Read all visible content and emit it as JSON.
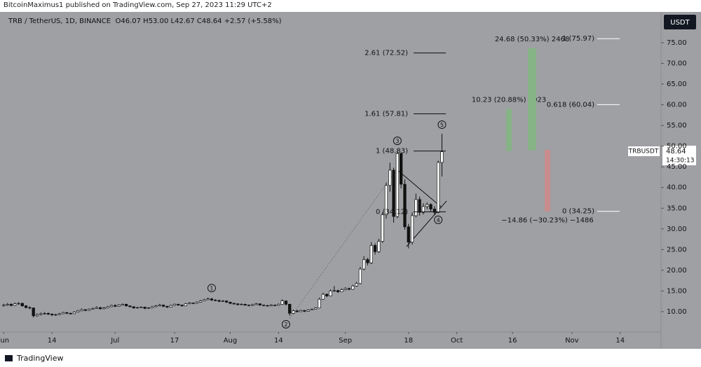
{
  "header": {
    "publisher": "BitcoinMaximus1 published on TradingView.com, Sep 27, 2023 11:29 UTC+2",
    "symbol": "TRB / TetherUS, 1D, BINANCE",
    "o_label": "O",
    "open": "46.07",
    "h_label": "H",
    "high": "53.00",
    "l_label": "L",
    "low": "42.67",
    "c_label": "C",
    "close": "48.64",
    "change": "+2.57 (+5.58%)",
    "currency": "USDT",
    "ticker_tag": "TRBUSDT",
    "price_tag": "48.64",
    "countdown": "14:30:13"
  },
  "footer": {
    "brand": "TradingView"
  },
  "chart_data": {
    "type": "candlestick",
    "background": "#9fa0a4",
    "xlim": [
      "2023-05-31",
      "2023-11-25"
    ],
    "xticks": [
      {
        "value": "2023-06-01",
        "label": "Jun"
      },
      {
        "value": "2023-06-14",
        "label": "14"
      },
      {
        "value": "2023-07-01",
        "label": "Jul"
      },
      {
        "value": "2023-07-17",
        "label": "17"
      },
      {
        "value": "2023-08-01",
        "label": "Aug"
      },
      {
        "value": "2023-08-14",
        "label": "14"
      },
      {
        "value": "2023-09-01",
        "label": "Sep"
      },
      {
        "value": "2023-09-18",
        "label": "18"
      },
      {
        "value": "2023-10-01",
        "label": "Oct"
      },
      {
        "value": "2023-10-16",
        "label": "16"
      },
      {
        "value": "2023-11-01",
        "label": "Nov"
      },
      {
        "value": "2023-11-14",
        "label": "14"
      }
    ],
    "ylim": [
      5.09,
      82.44
    ],
    "yticks": [
      {
        "value": 10,
        "label": "10.00"
      },
      {
        "value": 15,
        "label": "15.00"
      },
      {
        "value": 20,
        "label": "20.00"
      },
      {
        "value": 25,
        "label": "25.00"
      },
      {
        "value": 30,
        "label": "30.00"
      },
      {
        "value": 35,
        "label": "35.00"
      },
      {
        "value": 40,
        "label": "40.00"
      },
      {
        "value": 45,
        "label": "45.00"
      },
      {
        "value": 50,
        "label": "50.00"
      },
      {
        "value": 55,
        "label": "55.00"
      },
      {
        "value": 60,
        "label": "60.00"
      },
      {
        "value": 65,
        "label": "65.00"
      },
      {
        "value": 70,
        "label": "70.00"
      },
      {
        "value": 75,
        "label": "75.00"
      }
    ],
    "x": [
      "2023-06-01",
      "2023-06-02",
      "2023-06-03",
      "2023-06-04",
      "2023-06-05",
      "2023-06-06",
      "2023-06-07",
      "2023-06-08",
      "2023-06-09",
      "2023-06-10",
      "2023-06-11",
      "2023-06-12",
      "2023-06-13",
      "2023-06-14",
      "2023-06-15",
      "2023-06-16",
      "2023-06-17",
      "2023-06-18",
      "2023-06-19",
      "2023-06-20",
      "2023-06-21",
      "2023-06-22",
      "2023-06-23",
      "2023-06-24",
      "2023-06-25",
      "2023-06-26",
      "2023-06-27",
      "2023-06-28",
      "2023-06-29",
      "2023-06-30",
      "2023-07-01",
      "2023-07-02",
      "2023-07-03",
      "2023-07-04",
      "2023-07-05",
      "2023-07-06",
      "2023-07-07",
      "2023-07-08",
      "2023-07-09",
      "2023-07-10",
      "2023-07-11",
      "2023-07-12",
      "2023-07-13",
      "2023-07-14",
      "2023-07-15",
      "2023-07-16",
      "2023-07-17",
      "2023-07-18",
      "2023-07-19",
      "2023-07-20",
      "2023-07-21",
      "2023-07-22",
      "2023-07-23",
      "2023-07-24",
      "2023-07-25",
      "2023-07-26",
      "2023-07-27",
      "2023-07-28",
      "2023-07-29",
      "2023-07-30",
      "2023-07-31",
      "2023-08-01",
      "2023-08-02",
      "2023-08-03",
      "2023-08-04",
      "2023-08-05",
      "2023-08-06",
      "2023-08-07",
      "2023-08-08",
      "2023-08-09",
      "2023-08-10",
      "2023-08-11",
      "2023-08-12",
      "2023-08-13",
      "2023-08-14",
      "2023-08-15",
      "2023-08-16",
      "2023-08-17",
      "2023-08-18",
      "2023-08-19",
      "2023-08-20",
      "2023-08-21",
      "2023-08-22",
      "2023-08-23",
      "2023-08-24",
      "2023-08-25",
      "2023-08-26",
      "2023-08-27",
      "2023-08-28",
      "2023-08-29",
      "2023-08-30",
      "2023-08-31",
      "2023-09-01",
      "2023-09-02",
      "2023-09-03",
      "2023-09-04",
      "2023-09-05",
      "2023-09-06",
      "2023-09-07",
      "2023-09-08",
      "2023-09-09",
      "2023-09-10",
      "2023-09-11",
      "2023-09-12",
      "2023-09-13",
      "2023-09-14",
      "2023-09-15",
      "2023-09-16",
      "2023-09-17",
      "2023-09-18",
      "2023-09-19",
      "2023-09-20",
      "2023-09-21",
      "2023-09-22",
      "2023-09-23",
      "2023-09-24",
      "2023-09-25",
      "2023-09-26",
      "2023-09-27"
    ],
    "ohlc": [
      [
        11.4,
        11.9,
        11.2,
        11.6
      ],
      [
        11.6,
        12.1,
        11.4,
        11.8
      ],
      [
        11.8,
        12.0,
        11.3,
        11.5
      ],
      [
        11.5,
        12.2,
        11.4,
        11.9
      ],
      [
        11.9,
        12.3,
        11.7,
        12.0
      ],
      [
        12.0,
        12.2,
        11.2,
        11.4
      ],
      [
        11.4,
        11.6,
        10.8,
        11.0
      ],
      [
        11.0,
        11.3,
        10.6,
        10.9
      ],
      [
        10.9,
        11.0,
        8.6,
        9.0
      ],
      [
        9.0,
        9.6,
        8.8,
        9.3
      ],
      [
        9.3,
        9.8,
        9.1,
        9.5
      ],
      [
        9.5,
        9.9,
        9.3,
        9.6
      ],
      [
        9.6,
        9.8,
        9.2,
        9.4
      ],
      [
        9.4,
        9.6,
        9.0,
        9.2
      ],
      [
        9.2,
        9.5,
        9.0,
        9.3
      ],
      [
        9.3,
        9.7,
        9.2,
        9.5
      ],
      [
        9.5,
        10.0,
        9.4,
        9.8
      ],
      [
        9.8,
        9.9,
        9.4,
        9.6
      ],
      [
        9.6,
        9.8,
        9.3,
        9.5
      ],
      [
        9.5,
        10.1,
        9.4,
        9.9
      ],
      [
        9.9,
        10.4,
        9.8,
        10.2
      ],
      [
        10.2,
        10.8,
        10.1,
        10.5
      ],
      [
        10.5,
        10.6,
        10.1,
        10.3
      ],
      [
        10.3,
        10.8,
        10.2,
        10.6
      ],
      [
        10.6,
        11.0,
        10.5,
        10.8
      ],
      [
        10.8,
        11.3,
        10.7,
        11.0
      ],
      [
        11.0,
        11.1,
        10.5,
        10.7
      ],
      [
        10.7,
        11.1,
        10.6,
        10.9
      ],
      [
        10.9,
        11.4,
        10.8,
        11.2
      ],
      [
        11.2,
        11.7,
        11.1,
        11.5
      ],
      [
        11.5,
        11.8,
        11.1,
        11.3
      ],
      [
        11.3,
        11.8,
        11.2,
        11.6
      ],
      [
        11.6,
        12.0,
        11.5,
        11.8
      ],
      [
        11.8,
        11.9,
        11.2,
        11.4
      ],
      [
        11.4,
        11.5,
        11.0,
        11.2
      ],
      [
        11.2,
        11.3,
        10.7,
        10.9
      ],
      [
        10.9,
        11.2,
        10.8,
        11.0
      ],
      [
        11.0,
        11.3,
        10.9,
        11.1
      ],
      [
        11.1,
        11.2,
        10.6,
        10.8
      ],
      [
        10.8,
        11.1,
        10.7,
        10.9
      ],
      [
        10.9,
        11.4,
        10.8,
        11.2
      ],
      [
        11.2,
        11.6,
        11.1,
        11.4
      ],
      [
        11.4,
        11.9,
        11.3,
        11.6
      ],
      [
        11.6,
        11.7,
        11.1,
        11.3
      ],
      [
        11.3,
        11.4,
        10.9,
        11.1
      ],
      [
        11.1,
        11.7,
        11.0,
        11.5
      ],
      [
        11.5,
        12.0,
        11.4,
        11.8
      ],
      [
        11.8,
        11.9,
        11.4,
        11.6
      ],
      [
        11.6,
        11.7,
        11.2,
        11.4
      ],
      [
        11.4,
        12.1,
        11.3,
        11.9
      ],
      [
        11.9,
        12.3,
        11.8,
        12.1
      ],
      [
        12.1,
        12.2,
        11.8,
        12.0
      ],
      [
        12.0,
        12.5,
        11.9,
        12.3
      ],
      [
        12.3,
        12.8,
        12.2,
        12.6
      ],
      [
        12.6,
        13.1,
        12.5,
        12.9
      ],
      [
        12.9,
        13.4,
        12.8,
        13.1
      ],
      [
        13.1,
        13.3,
        12.6,
        12.8
      ],
      [
        12.8,
        13.0,
        12.5,
        12.7
      ],
      [
        12.7,
        12.9,
        12.3,
        12.5
      ],
      [
        12.5,
        12.8,
        12.4,
        12.6
      ],
      [
        12.6,
        12.7,
        12.1,
        12.3
      ],
      [
        12.3,
        12.4,
        11.8,
        12.0
      ],
      [
        12.0,
        12.2,
        11.7,
        11.9
      ],
      [
        11.9,
        12.0,
        11.5,
        11.7
      ],
      [
        11.7,
        12.0,
        11.6,
        11.8
      ],
      [
        11.8,
        11.9,
        11.4,
        11.6
      ],
      [
        11.6,
        11.7,
        11.3,
        11.5
      ],
      [
        11.5,
        11.9,
        11.4,
        11.7
      ],
      [
        11.7,
        12.1,
        11.6,
        11.9
      ],
      [
        11.9,
        12.0,
        11.4,
        11.6
      ],
      [
        11.6,
        11.7,
        11.3,
        11.5
      ],
      [
        11.5,
        11.6,
        11.2,
        11.4
      ],
      [
        11.4,
        11.8,
        11.3,
        11.6
      ],
      [
        11.6,
        11.7,
        11.3,
        11.5
      ],
      [
        11.5,
        12.0,
        11.4,
        11.8
      ],
      [
        11.8,
        13.0,
        11.7,
        12.6
      ],
      [
        12.6,
        12.7,
        11.5,
        11.8
      ],
      [
        11.8,
        11.9,
        9.0,
        9.6
      ],
      [
        9.6,
        10.5,
        9.4,
        10.2
      ],
      [
        10.2,
        10.4,
        9.8,
        10.0
      ],
      [
        10.0,
        10.5,
        9.9,
        10.3
      ],
      [
        10.3,
        10.4,
        9.9,
        10.1
      ],
      [
        10.1,
        10.6,
        10.0,
        10.4
      ],
      [
        10.4,
        10.8,
        10.3,
        10.6
      ],
      [
        10.6,
        11.1,
        10.5,
        10.9
      ],
      [
        10.9,
        13.4,
        10.8,
        13.0
      ],
      [
        13.0,
        14.6,
        12.9,
        14.2
      ],
      [
        14.2,
        14.4,
        13.5,
        13.8
      ],
      [
        13.8,
        15.4,
        13.7,
        15.0
      ],
      [
        15.0,
        16.2,
        14.8,
        15.1
      ],
      [
        15.1,
        15.3,
        14.5,
        14.8
      ],
      [
        14.8,
        15.6,
        14.7,
        15.3
      ],
      [
        15.3,
        15.9,
        15.1,
        15.6
      ],
      [
        15.6,
        15.8,
        15.2,
        15.4
      ],
      [
        15.4,
        16.5,
        15.3,
        16.2
      ],
      [
        16.2,
        17.2,
        16.0,
        16.8
      ],
      [
        16.8,
        20.8,
        16.6,
        20.3
      ],
      [
        20.3,
        23.4,
        20.0,
        22.6
      ],
      [
        22.6,
        23.0,
        21.2,
        21.8
      ],
      [
        21.8,
        26.8,
        21.5,
        26.0
      ],
      [
        26.0,
        26.5,
        23.8,
        24.5
      ],
      [
        24.5,
        27.6,
        24.2,
        27.0
      ],
      [
        27.0,
        34.0,
        26.6,
        33.4
      ],
      [
        33.4,
        41.2,
        32.5,
        40.5
      ],
      [
        40.5,
        46.0,
        39.0,
        44.2
      ],
      [
        44.2,
        44.8,
        31.5,
        33.0
      ],
      [
        33.0,
        48.83,
        32.6,
        48.2
      ],
      [
        48.2,
        48.5,
        39.8,
        40.8
      ],
      [
        40.8,
        42.0,
        29.8,
        30.5
      ],
      [
        30.5,
        31.2,
        25.3,
        26.8
      ],
      [
        26.8,
        34.0,
        26.2,
        33.2
      ],
      [
        33.2,
        38.5,
        32.8,
        37.1
      ],
      [
        37.1,
        37.8,
        33.2,
        34.0
      ],
      [
        34.0,
        36.2,
        33.5,
        35.4
      ],
      [
        35.4,
        36.4,
        34.8,
        35.9
      ],
      [
        35.9,
        36.2,
        34.2,
        34.8
      ],
      [
        34.8,
        35.5,
        33.4,
        34.0
      ],
      [
        34.0,
        46.5,
        33.8,
        46.07
      ],
      [
        46.07,
        53.0,
        42.67,
        48.64
      ]
    ],
    "fib_left": [
      {
        "label": "2.61 (72.52)",
        "value": 72.52
      },
      {
        "label": "1.61 (57.81)",
        "value": 57.81
      },
      {
        "label": "1 (48.83)",
        "value": 48.83
      },
      {
        "label": "0 (34.12)",
        "value": 34.12
      }
    ],
    "fib_right": [
      {
        "label": "1 (75.97)",
        "value": 75.97
      },
      {
        "label": "0.618 (60.04)",
        "value": 60.04
      },
      {
        "label": "0 (34.25)",
        "value": 34.25
      }
    ],
    "measures": [
      {
        "label": "10.23 (20.88%) 1023",
        "from": 48.8,
        "to": 59.03,
        "color": "#86b486"
      },
      {
        "label": "24.68 (50.33%) 2468",
        "from": 49.0,
        "to": 73.68,
        "color": "#86b486"
      },
      {
        "label": "−14.86 (−30.23%) −1486",
        "from": 49.11,
        "to": 34.25,
        "color": "#c98c8c"
      }
    ],
    "waves": [
      {
        "label": "1",
        "x": "2023-07-27",
        "y": 15.7
      },
      {
        "label": "2",
        "x": "2023-08-16",
        "y": 6.95
      },
      {
        "label": "3",
        "x": "2023-09-15",
        "y": 51.3
      },
      {
        "label": "4",
        "x": "2023-09-26",
        "y": 32.2
      },
      {
        "label": "5",
        "x": "2023-09-27",
        "y": 55.2
      }
    ]
  }
}
